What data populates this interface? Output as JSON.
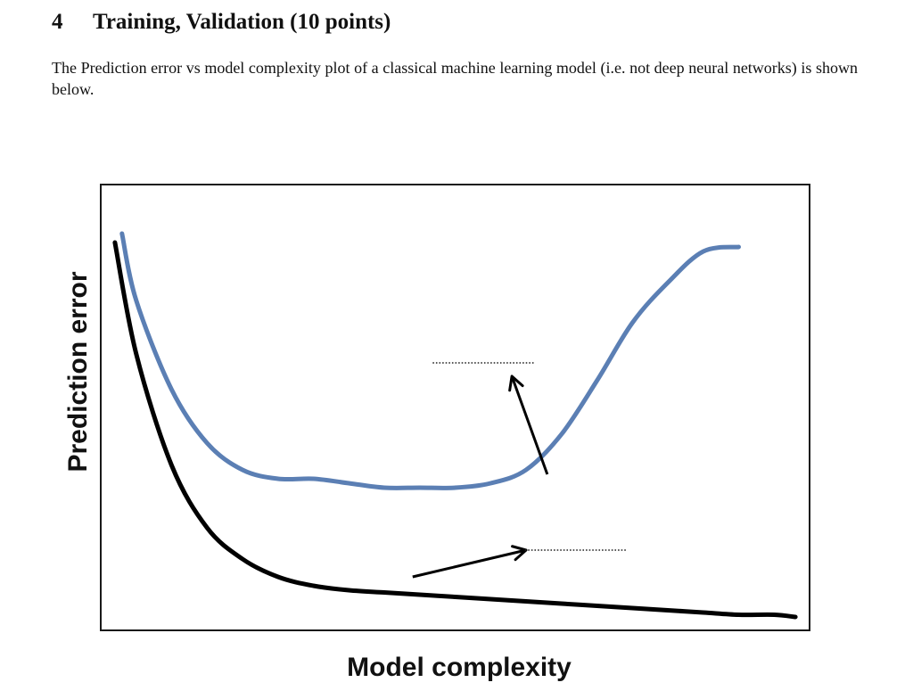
{
  "section": {
    "number": "4",
    "title": "Training, Validation (10 points)"
  },
  "paragraph": "The Prediction error vs model complexity plot of a classical machine learning model (i.e.  not deep neural networks) is shown below.",
  "chart_data": {
    "type": "line",
    "title": "",
    "xlabel": "Model complexity",
    "ylabel": "Prediction error",
    "xlim": [
      0,
      1
    ],
    "ylim": [
      0,
      1
    ],
    "grid": false,
    "legend": "none",
    "series": [
      {
        "color": "#5b7fb4",
        "x": [
          0.03,
          0.05,
          0.1,
          0.15,
          0.2,
          0.25,
          0.3,
          0.35,
          0.4,
          0.45,
          0.5,
          0.55,
          0.6,
          0.65,
          0.7,
          0.75,
          0.8,
          0.85,
          0.9
        ],
        "y": [
          0.89,
          0.74,
          0.54,
          0.42,
          0.36,
          0.34,
          0.34,
          0.33,
          0.32,
          0.32,
          0.32,
          0.33,
          0.36,
          0.44,
          0.56,
          0.69,
          0.78,
          0.85,
          0.86
        ]
      },
      {
        "color": "#000000",
        "x": [
          0.02,
          0.05,
          0.1,
          0.15,
          0.2,
          0.25,
          0.3,
          0.35,
          0.4,
          0.45,
          0.5,
          0.55,
          0.6,
          0.65,
          0.7,
          0.75,
          0.8,
          0.85,
          0.9,
          0.95,
          0.98
        ],
        "y": [
          0.87,
          0.62,
          0.37,
          0.23,
          0.16,
          0.12,
          0.1,
          0.09,
          0.085,
          0.08,
          0.075,
          0.07,
          0.065,
          0.06,
          0.055,
          0.05,
          0.045,
          0.04,
          0.035,
          0.035,
          0.03
        ]
      }
    ],
    "annotations": [
      {
        "type": "arrow_with_blank",
        "from": [
          0.63,
          0.35
        ],
        "to": [
          0.58,
          0.57
        ],
        "blank_at": [
          0.54,
          0.6
        ]
      },
      {
        "type": "arrow_with_blank",
        "from": [
          0.44,
          0.12
        ],
        "to": [
          0.6,
          0.18
        ],
        "blank_at": [
          0.67,
          0.18
        ]
      }
    ]
  }
}
